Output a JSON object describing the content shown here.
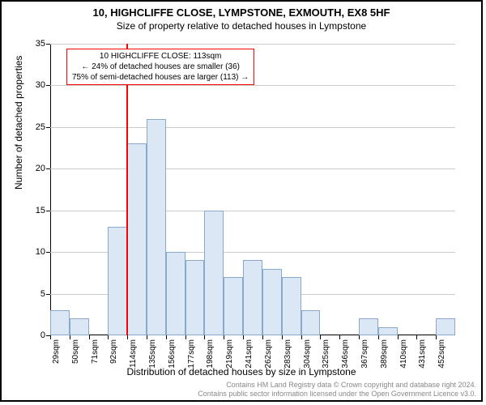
{
  "title_main": "10, HIGHCLIFFE CLOSE, LYMPSTONE, EXMOUTH, EX8 5HF",
  "title_sub": "Size of property relative to detached houses in Lympstone",
  "y_axis_title": "Number of detached properties",
  "x_axis_title": "Distribution of detached houses by size in Lympstone",
  "chart": {
    "type": "histogram",
    "background_color": "#ffffff",
    "grid_color": "#cccccc",
    "bar_fill": "#dbe7f5",
    "bar_border": "#88a8cc",
    "ref_line_color": "#ff0000",
    "ylim": [
      0,
      35
    ],
    "ytick_step": 5,
    "y_ticks": [
      0,
      5,
      10,
      15,
      20,
      25,
      30,
      35
    ],
    "x_tick_labels": [
      "29sqm",
      "50sqm",
      "71sqm",
      "92sqm",
      "114sqm",
      "135sqm",
      "156sqm",
      "177sqm",
      "198sqm",
      "219sqm",
      "241sqm",
      "262sqm",
      "283sqm",
      "304sqm",
      "325sqm",
      "346sqm",
      "367sqm",
      "389sqm",
      "410sqm",
      "431sqm",
      "452sqm"
    ],
    "values": [
      3,
      2,
      0,
      13,
      23,
      26,
      10,
      9,
      15,
      7,
      9,
      8,
      7,
      3,
      0,
      0,
      2,
      1,
      0,
      0,
      2
    ],
    "ref_line_bin_index": 4,
    "annotation": {
      "line1": "10 HIGHCLIFFE CLOSE: 113sqm",
      "line2": "← 24% of detached houses are smaller (36)",
      "line3": "75% of semi-detached houses are larger (113) →"
    }
  },
  "footer": {
    "line1": "Contains HM Land Registry data © Crown copyright and database right 2024.",
    "line2": "Contains public sector information licensed under the Open Government Licence v3.0."
  }
}
